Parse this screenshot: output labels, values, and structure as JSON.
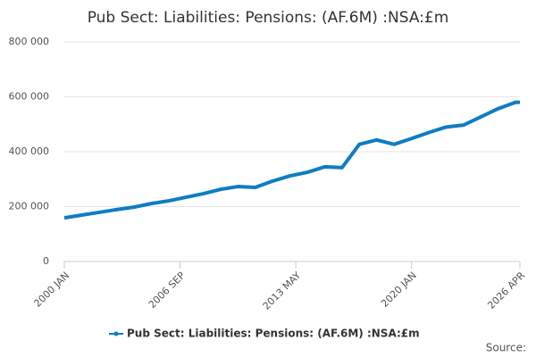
{
  "chart_data": {
    "type": "line",
    "title": "Pub Sect: Liabilities: Pensions: (AF.6M) :NSA:£m",
    "source": "Source:",
    "x": [
      "2000 JAN",
      "2001 JAN",
      "2002 JAN",
      "2003 JAN",
      "2004 JAN",
      "2005 JAN",
      "2006 JAN",
      "2007 JAN",
      "2008 JAN",
      "2009 JAN",
      "2010 JAN",
      "2011 JAN",
      "2012 JAN",
      "2013 JAN",
      "2014 JAN",
      "2015 JAN",
      "2016 JAN",
      "2017 JAN",
      "2018 JAN",
      "2019 JAN",
      "2020 JAN",
      "2021 JAN",
      "2022 JAN",
      "2023 JAN",
      "2024 JAN",
      "2025 JAN",
      "2026 JAN",
      "2026 APR"
    ],
    "series": [
      {
        "name": "Pub Sect: Liabilities: Pensions: (AF.6M) :NSA:£m",
        "color": "#0e7dc2",
        "values": [
          159000,
          169000,
          179000,
          189000,
          198000,
          211000,
          221000,
          234000,
          247000,
          263000,
          273000,
          270000,
          293000,
          312000,
          325000,
          345000,
          342000,
          427000,
          443000,
          427000,
          448000,
          470000,
          490000,
          497000,
          527000,
          557000,
          580000,
          580000
        ]
      }
    ],
    "xlim": [
      "2000 JAN",
      "2026 APR"
    ],
    "xticks": [
      "2000 JAN",
      "2006 SEP",
      "2013 MAY",
      "2020 JAN",
      "2026 APR"
    ],
    "ylim": [
      0,
      800000
    ],
    "yticks": [
      0,
      {
        "value": 200000,
        "label": "200 000"
      },
      {
        "value": 400000,
        "label": "400 000"
      },
      {
        "value": 600000,
        "label": "600 000"
      },
      {
        "value": 800000,
        "label": "800 000"
      }
    ],
    "grid": true,
    "legend": "bottom"
  }
}
